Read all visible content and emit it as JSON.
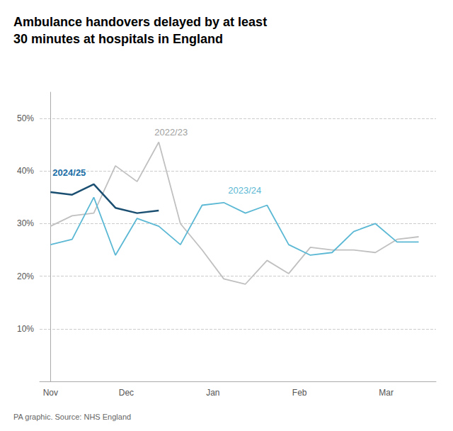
{
  "chart_data": {
    "type": "line",
    "title": "Ambulance handovers delayed by at least\n30 minutes at hospitals in England",
    "source": "PA graphic. Source: NHS England",
    "xlim": [
      -0.5,
      17.8
    ],
    "xticks": [
      {
        "value": 0,
        "label": "Nov"
      },
      {
        "value": 3.5,
        "label": "Dec"
      },
      {
        "value": 7.5,
        "label": "Jan"
      },
      {
        "value": 11.5,
        "label": "Feb"
      },
      {
        "value": 15.5,
        "label": "Mar"
      }
    ],
    "ylim": [
      0,
      55
    ],
    "yticks": [
      {
        "value": 10,
        "label": "10%"
      },
      {
        "value": 20,
        "label": "20%"
      },
      {
        "value": 30,
        "label": "30%"
      },
      {
        "value": 40,
        "label": "40%"
      },
      {
        "value": 50,
        "label": "50%"
      }
    ],
    "grid": true,
    "series": [
      {
        "name": "2022/23",
        "color": "#c0c0c0",
        "x": [
          0,
          1,
          2,
          3,
          4,
          5,
          6,
          7,
          8,
          9,
          10,
          11,
          12,
          13,
          14,
          15,
          16,
          17
        ],
        "values": [
          29.5,
          31.5,
          32.0,
          41.0,
          38.0,
          45.5,
          30.0,
          25.0,
          19.5,
          18.5,
          23.0,
          20.5,
          25.5,
          25.0,
          25.0,
          24.5,
          27.0,
          27.5
        ]
      },
      {
        "name": "2023/24",
        "color": "#5bb8d4",
        "x": [
          0,
          1,
          2,
          3,
          4,
          5,
          6,
          7,
          8,
          9,
          10,
          11,
          12,
          13,
          14,
          15,
          16,
          17
        ],
        "values": [
          26.0,
          27.0,
          35.0,
          24.0,
          31.0,
          29.5,
          26.0,
          33.5,
          34.0,
          32.0,
          33.5,
          26.0,
          24.0,
          24.5,
          28.5,
          30.0,
          26.5,
          26.5
        ]
      },
      {
        "name": "2024/25",
        "color": "#1b4f72",
        "x": [
          0,
          1,
          2,
          3,
          4,
          5
        ],
        "values": [
          36.0,
          35.5,
          37.5,
          33.0,
          32.0,
          32.5
        ]
      }
    ],
    "annotations": [
      {
        "x": 4.8,
        "y": 46.5,
        "text": "2022/23",
        "color": "#a0a0a0"
      },
      {
        "x": 8.2,
        "y": 35.5,
        "text": "2023/24",
        "color": "#5bb8d4"
      },
      {
        "x": 0.1,
        "y": 38.8,
        "text": "2024/25",
        "color": "#1b6fa8"
      }
    ]
  }
}
